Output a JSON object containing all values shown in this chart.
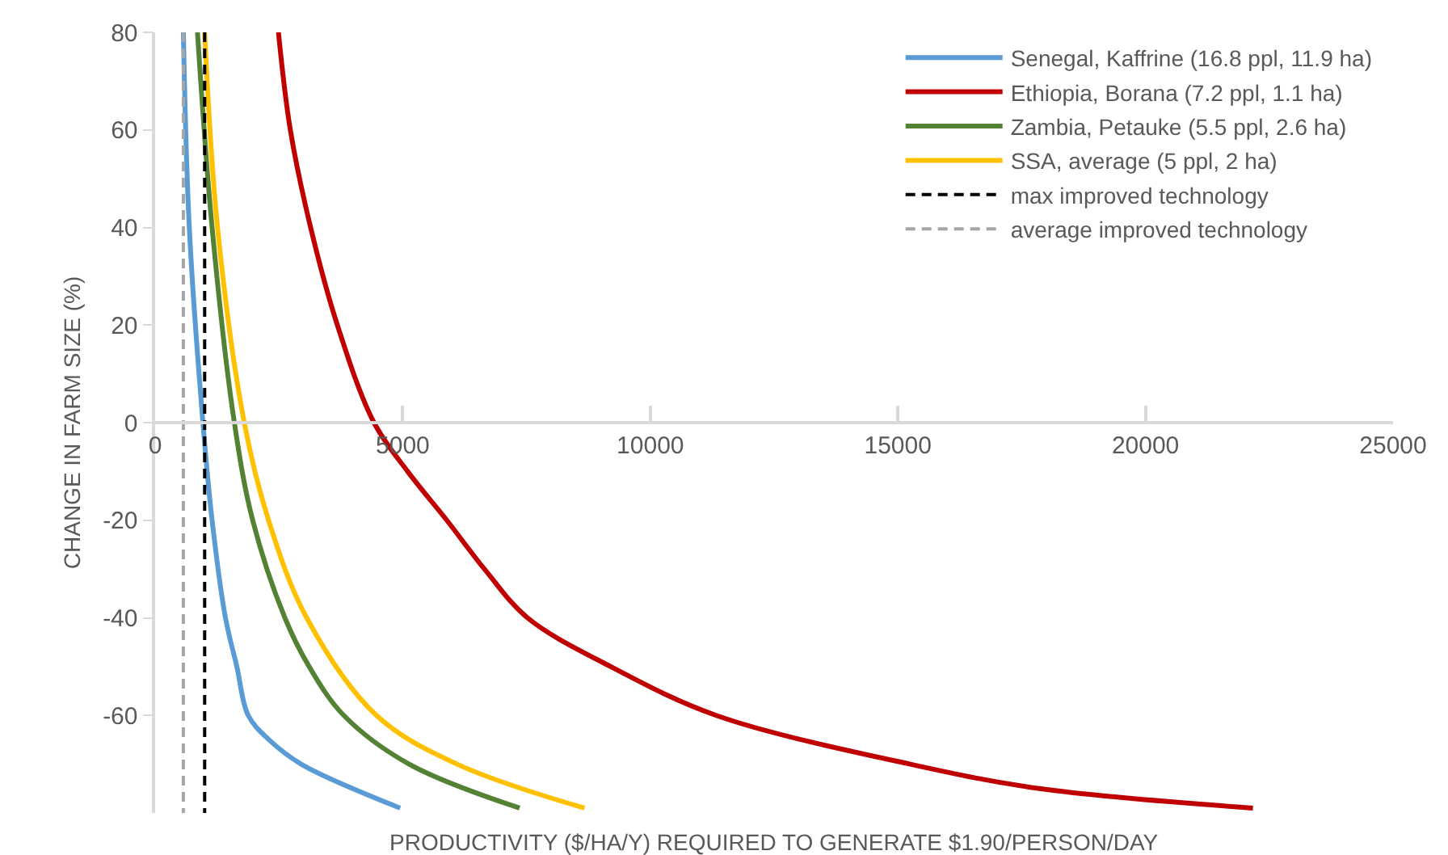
{
  "chart_data": {
    "type": "line",
    "xlabel": "PRODUCTIVITY ($/HA/Y) REQUIRED TO GENERATE $1.90/PERSON/DAY",
    "ylabel": "CHANGE IN FARM SIZE (%)",
    "xlim": [
      0,
      25000
    ],
    "xticks": [
      0,
      5000,
      10000,
      15000,
      20000,
      25000
    ],
    "ylim": [
      -80,
      80
    ],
    "yticks": [
      -60,
      -40,
      -20,
      0,
      20,
      40,
      60,
      80
    ],
    "grid": false,
    "legend": "top right",
    "line_style": "solid",
    "marker": "none",
    "series": [
      {
        "name": "Senegal, Kaffrine (16.8 ppl, 11.9 ha)",
        "color": "#5b9bd5",
        "x": [
          570,
          690,
          965,
          1150,
          1420,
          1650,
          1880,
          2300,
          2950,
          4950
        ],
        "values": [
          80,
          40,
          0,
          -20,
          -40,
          -50,
          -60,
          -65,
          -70,
          -79
        ]
      },
      {
        "name": "Ethiopia, Borana (7.2 ppl, 1.1 ha)",
        "color": "#c00000",
        "x": [
          2490,
          2730,
          3140,
          3680,
          4420,
          5100,
          5890,
          6650,
          7520,
          9200,
          11330,
          15250,
          17860,
          22170
        ],
        "values": [
          80,
          60,
          40,
          20,
          0,
          -10,
          -20,
          -30,
          -40,
          -50,
          -60,
          -70,
          -75,
          -79
        ]
      },
      {
        "name": "Zambia, Petauke (5.5 ppl, 2.6 ha)",
        "color": "#548235",
        "x": [
          855,
          1150,
          1600,
          1970,
          2620,
          3110,
          3810,
          5130,
          7360
        ],
        "values": [
          80,
          40,
          0,
          -20,
          -40,
          -50,
          -60,
          -70,
          -79
        ]
      },
      {
        "name": "SSA, average (5 ppl, 2 ha)",
        "color": "#ffc000",
        "x": [
          1000,
          1260,
          1800,
          2290,
          3060,
          4470,
          6100,
          8670
        ],
        "values": [
          80,
          40,
          0,
          -20,
          -40,
          -60,
          -70,
          -79
        ]
      },
      {
        "name": "max improved technology",
        "color": "#000000",
        "line_style": "dashed",
        "x": [
          1000,
          1000
        ],
        "values": [
          80,
          -80
        ]
      },
      {
        "name": "average improved technology",
        "color": "#a6a6a6",
        "line_style": "dashed",
        "x": [
          570,
          570
        ],
        "values": [
          80,
          -80
        ]
      }
    ]
  }
}
